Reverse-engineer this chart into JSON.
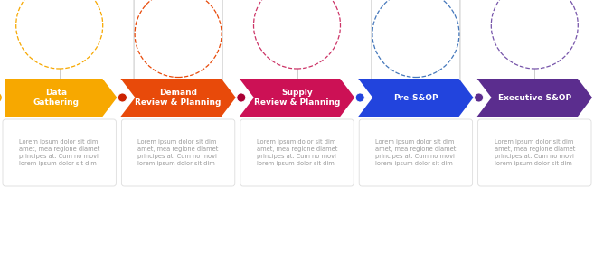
{
  "steps": [
    {
      "label": "Data\nGathering",
      "color": "#F7A800",
      "dot_color": "#F7A800",
      "icon_color": "#F7A800",
      "has_rounded_rect": false,
      "text": "Lorem ipsum dolor sit dim\namet, mea regione diamet\nprincipes at. Cum no movi\nlorem ipsum dolor sit dim"
    },
    {
      "label": "Demand\nReview & Planning",
      "color": "#E84A0A",
      "dot_color": "#CC2200",
      "icon_color": "#E84A0A",
      "has_rounded_rect": true,
      "text": "Lorem ipsum dolor sit dim\namet, mea regione diamet\nprincipes at. Cum no movi\nlorem ipsum dolor sit dim"
    },
    {
      "label": "Supply\nReview & Planning",
      "color": "#CC1155",
      "dot_color": "#AA0033",
      "icon_color": "#CC3366",
      "has_rounded_rect": false,
      "text": "Lorem ipsum dolor sit dim\namet, mea regione diamet\nprincipes at. Cum no movi\nlorem ipsum dolor sit dim"
    },
    {
      "label": "Pre-S&OP",
      "color": "#2244DD",
      "dot_color": "#2244DD",
      "icon_color": "#4477BB",
      "has_rounded_rect": true,
      "text": "Lorem ipsum dolor sit dim\namet, mea regione diamet\nprincipes at. Cum no movi\nlorem ipsum dolor sit dim"
    },
    {
      "label": "Executive S&OP",
      "color": "#5B2D8E",
      "dot_color": "#5B2D8E",
      "icon_color": "#7755AA",
      "has_rounded_rect": false,
      "text": "Lorem ipsum dolor sit dim\namet, mea regione diamet\nprincipes at. Cum no movi\nlorem ipsum dolor sit dim"
    }
  ],
  "bg_color": "#ffffff",
  "label_fontsize": 6.5,
  "text_fontsize": 4.8,
  "text_color": "#999999",
  "label_text_color": "#ffffff"
}
